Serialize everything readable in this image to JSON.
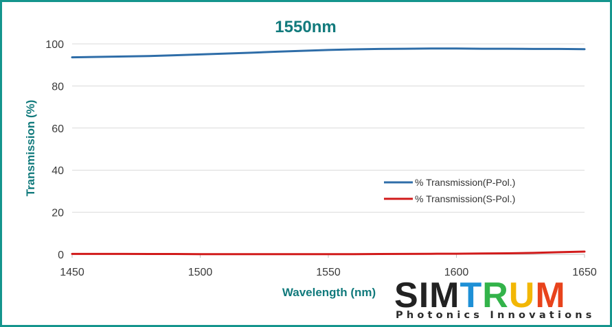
{
  "chart_data": {
    "type": "line",
    "title": "1550nm",
    "xlabel": "Wavelength (nm)",
    "ylabel": "Transmission (%)",
    "xlim": [
      1450,
      1650
    ],
    "ylim": [
      0,
      100
    ],
    "xticks": [
      1450,
      1500,
      1550,
      1600,
      1650
    ],
    "yticks": [
      0,
      20,
      40,
      60,
      80,
      100
    ],
    "grid": "horizontal",
    "legend_position": "center-right",
    "series": [
      {
        "name": "% Transmission(P-Pol.)",
        "color": "#2e6da8",
        "x": [
          1450,
          1460,
          1470,
          1480,
          1490,
          1500,
          1510,
          1520,
          1530,
          1540,
          1550,
          1560,
          1570,
          1580,
          1590,
          1600,
          1610,
          1620,
          1630,
          1640,
          1650
        ],
        "y": [
          93.6,
          93.8,
          94.0,
          94.2,
          94.6,
          95.0,
          95.4,
          95.8,
          96.3,
          96.7,
          97.1,
          97.4,
          97.6,
          97.7,
          97.8,
          97.8,
          97.7,
          97.7,
          97.6,
          97.6,
          97.5
        ]
      },
      {
        "name": "% Transmission(S-Pol.)",
        "color": "#d11a1a",
        "x": [
          1450,
          1460,
          1470,
          1480,
          1490,
          1500,
          1510,
          1520,
          1530,
          1540,
          1550,
          1560,
          1570,
          1580,
          1590,
          1600,
          1610,
          1620,
          1630,
          1640,
          1650
        ],
        "y": [
          0.2,
          0.2,
          0.2,
          0.15,
          0.15,
          0.1,
          0.1,
          0.1,
          0.1,
          0.1,
          0.1,
          0.1,
          0.15,
          0.2,
          0.25,
          0.3,
          0.4,
          0.5,
          0.7,
          1.0,
          1.3
        ]
      }
    ]
  },
  "logo": {
    "letters": [
      "S",
      "I",
      "M",
      "T",
      "R",
      "U",
      "M"
    ],
    "tagline": "Photonics Innovations",
    "colors": [
      "#222222",
      "#222222",
      "#222222",
      "#1e90d6",
      "#33b34a",
      "#f2b705",
      "#e8431c"
    ]
  }
}
